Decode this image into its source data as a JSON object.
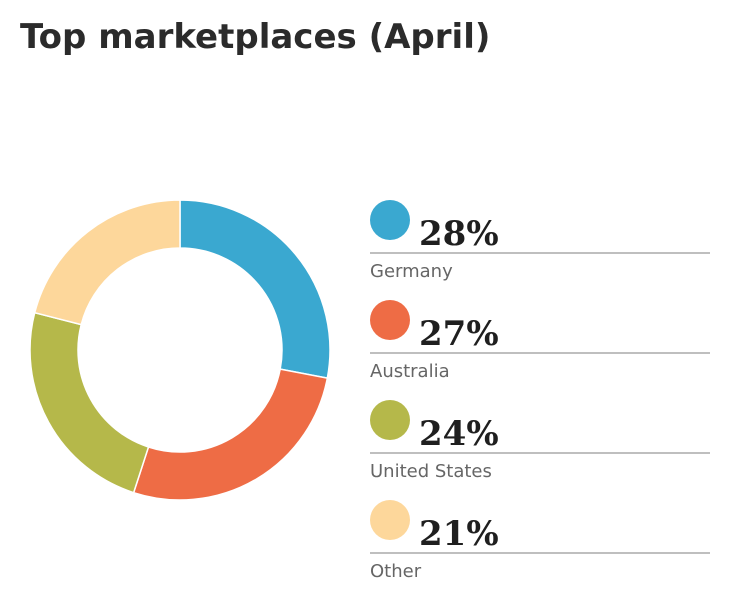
{
  "chart_data": {
    "type": "donut",
    "title": "Top marketplaces (April)",
    "categories": [
      "Germany",
      "Australia",
      "United States",
      "Other"
    ],
    "values": [
      28,
      27,
      24,
      21
    ],
    "value_labels": [
      "28%",
      "27%",
      "24%",
      "21%"
    ],
    "colors": [
      "#3aa8d0",
      "#ee6c45",
      "#b5b84a",
      "#fdd79b"
    ]
  }
}
